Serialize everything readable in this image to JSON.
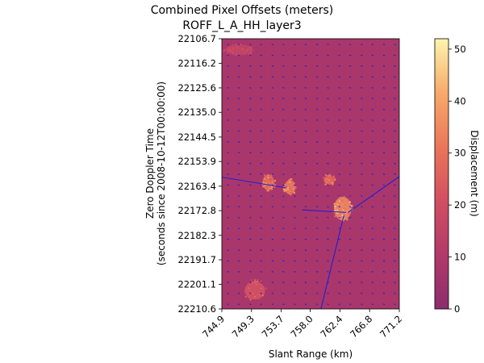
{
  "chart_data": {
    "type": "heatmap",
    "title": "Combined Pixel Offsets (meters)",
    "subtitle": "ROFF_L_A_HH_layer3",
    "xlabel": "Slant Range (km)",
    "ylabel": "Zero Doppler Time",
    "ylabel2": "(seconds since 2008-10-12T00:00:00)",
    "xlim": [
      744.9,
      771.2
    ],
    "ylim": [
      22210.6,
      22106.7
    ],
    "x_ticks": [
      "744.9",
      "749.3",
      "753.7",
      "758.0",
      "762.4",
      "766.8",
      "771.2"
    ],
    "y_ticks": [
      "22106.7",
      "22116.2",
      "22125.6",
      "22135.0",
      "22144.5",
      "22153.9",
      "22163.4",
      "22172.8",
      "22182.3",
      "22191.7",
      "22201.1",
      "22210.6"
    ],
    "background_value": 8,
    "colormap": "magma",
    "colorbar": {
      "label": "Displacement (m)",
      "range": [
        0,
        52
      ],
      "ticks": [
        "0",
        "10",
        "20",
        "30",
        "40",
        "50"
      ],
      "tick_values": [
        0,
        10,
        20,
        30,
        40,
        50
      ]
    },
    "hotspots": [
      {
        "x": 751.8,
        "y": 22162.0,
        "rx": 0.9,
        "ry": 3.0,
        "value": 40
      },
      {
        "x": 755.0,
        "y": 22163.8,
        "rx": 0.8,
        "ry": 2.8,
        "value": 44
      },
      {
        "x": 760.8,
        "y": 22161.0,
        "rx": 0.8,
        "ry": 1.8,
        "value": 38
      },
      {
        "x": 762.8,
        "y": 22172.0,
        "rx": 1.3,
        "ry": 4.5,
        "value": 48
      },
      {
        "x": 749.8,
        "y": 22203.5,
        "rx": 1.5,
        "ry": 3.5,
        "value": 30
      },
      {
        "x": 747.5,
        "y": 22111.0,
        "rx": 2.0,
        "ry": 2.0,
        "value": 22
      }
    ],
    "vector_field": {
      "color": "#1f1fd6",
      "x": [
        745.7,
        747.3,
        749.0,
        750.6,
        752.3,
        753.9,
        755.6,
        757.2,
        758.9,
        760.5,
        762.2,
        763.8,
        765.5,
        767.1,
        768.8,
        770.4
      ],
      "y": [
        22108.8,
        22113.0,
        22117.1,
        22121.3,
        22125.5,
        22129.6,
        22133.8,
        22137.9,
        22142.1,
        22146.3,
        22150.4,
        22154.6,
        22158.7,
        22162.9,
        22167.1,
        22171.2,
        22175.4,
        22179.5,
        22183.7,
        22187.9,
        22192.0,
        22196.2,
        22200.3,
        22204.5,
        22208.7
      ],
      "dx": 0.25,
      "dy": 0.2,
      "outliers": [
        {
          "x": 754.4,
          "y": 22164.0,
          "dx": -10.5,
          "dy": -4.5
        },
        {
          "x": 763.3,
          "y": 22173.5,
          "dx": -6.5,
          "dy": -1.0
        },
        {
          "x": 763.0,
          "y": 22174.5,
          "dx": -3.5,
          "dy": 37.0
        },
        {
          "x": 763.6,
          "y": 22173.5,
          "dx": 8.0,
          "dy": -14.5
        }
      ]
    }
  }
}
